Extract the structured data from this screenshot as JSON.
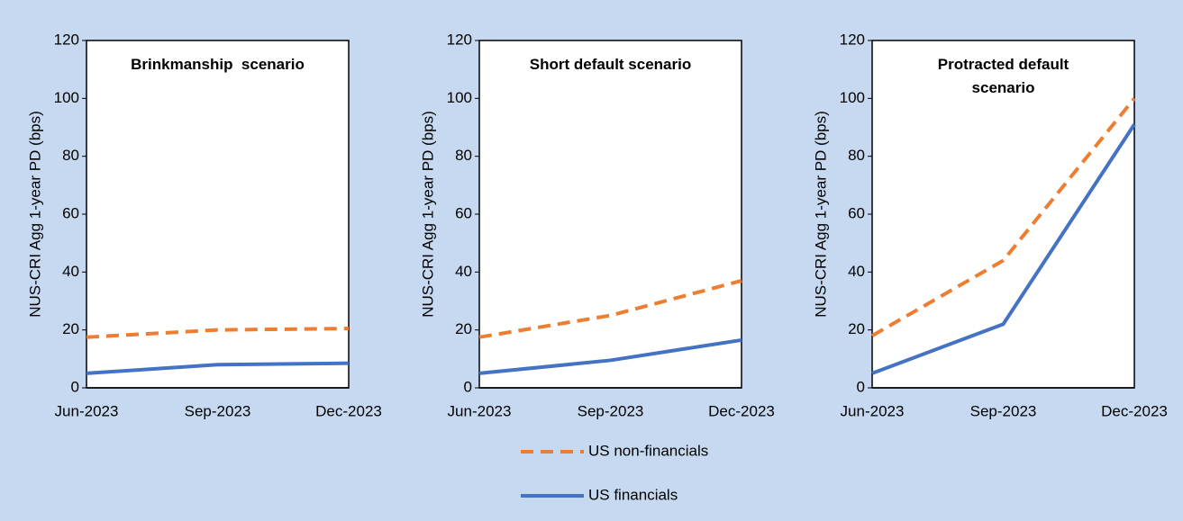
{
  "chart_data": [
    {
      "type": "line",
      "title": "Brinkmanship  scenario",
      "y_label": "NUS-CRI Agg 1-year PD (bps)",
      "categories": [
        "Jun-2023",
        "Sep-2023",
        "Dec-2023"
      ],
      "series": [
        {
          "values": [
            17.5,
            20,
            20.5
          ]
        },
        {
          "values": [
            5,
            8,
            8.5
          ]
        }
      ],
      "ylim": [
        0,
        120
      ],
      "yticks": [
        0,
        20,
        40,
        60,
        80,
        100,
        120
      ]
    },
    {
      "type": "line",
      "title": "Short default scenario",
      "y_label": "NUS-CRI Agg 1-year PD (bps)",
      "categories": [
        "Jun-2023",
        "Sep-2023",
        "Dec-2023"
      ],
      "series": [
        {
          "values": [
            17.5,
            25,
            37
          ]
        },
        {
          "values": [
            5,
            9.5,
            16.5
          ]
        }
      ],
      "ylim": [
        0,
        120
      ],
      "yticks": [
        0,
        20,
        40,
        60,
        80,
        100,
        120
      ]
    },
    {
      "type": "line",
      "title": "Protracted default scenario",
      "y_label": "NUS-CRI Agg 1-year PD (bps)",
      "categories": [
        "Jun-2023",
        "Sep-2023",
        "Dec-2023"
      ],
      "series": [
        {
          "values": [
            18,
            44,
            100
          ]
        },
        {
          "values": [
            5,
            22,
            91
          ]
        }
      ],
      "ylim": [
        0,
        120
      ],
      "yticks": [
        0,
        20,
        40,
        60,
        80,
        100,
        120
      ]
    }
  ],
  "legend": [
    {
      "name": "US non-financials",
      "color": "#ed7d31",
      "dashed": true
    },
    {
      "name": "US financials",
      "color": "#4472c4",
      "dashed": false
    }
  ]
}
